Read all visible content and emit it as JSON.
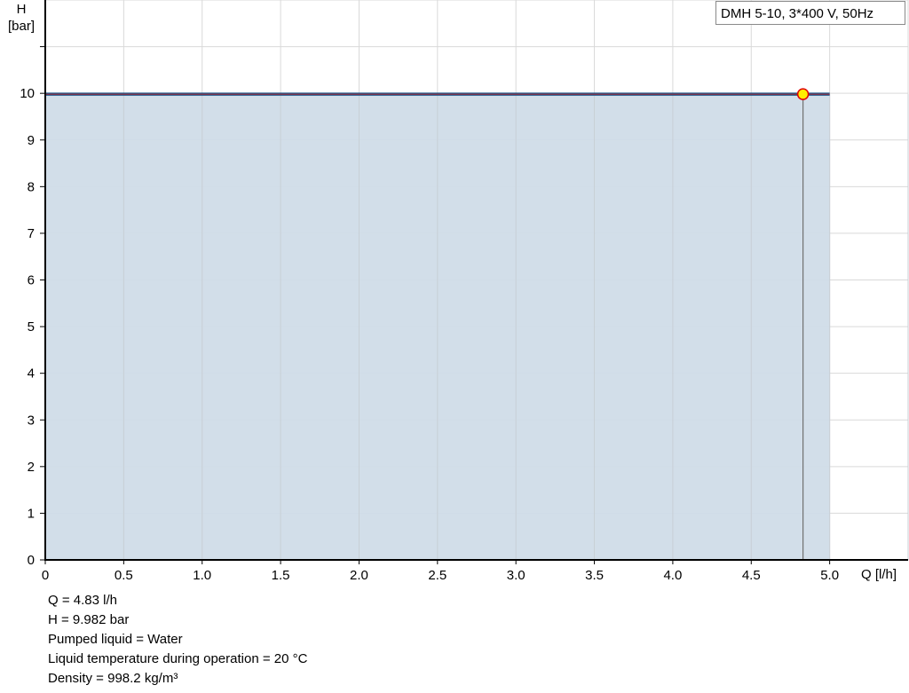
{
  "chart_data": {
    "type": "area",
    "legend": "DMH 5-10, 3*400 V, 50Hz",
    "legend_position": "top-right",
    "xlabel": "Q [l/h]",
    "ylabel_line1": "H",
    "ylabel_line2": "[bar]",
    "xlim": [
      0,
      5.5
    ],
    "ylim": [
      0,
      12
    ],
    "grid": true,
    "x_ticks": [
      "0",
      "0.5",
      "1.0",
      "1.5",
      "2.0",
      "2.5",
      "3.0",
      "3.5",
      "4.0",
      "4.5",
      "5.0"
    ],
    "y_ticks": [
      "0",
      "1",
      "2",
      "3",
      "4",
      "5",
      "6",
      "7",
      "8",
      "9",
      "10"
    ],
    "series": [
      {
        "x": [
          0,
          5.0
        ],
        "y": [
          9.982,
          9.982
        ]
      }
    ],
    "operating_point": {
      "x": 4.83,
      "y": 9.982
    },
    "colors": {
      "line": "#1f5a8c",
      "fill": "#d0dce8",
      "marker": "#ffee00",
      "marker_edge": "#e00000"
    }
  },
  "info": [
    "Q = 4.83 l/h",
    "H = 9.982 bar",
    "Pumped liquid = Water",
    "Liquid temperature during operation = 20 °C",
    "Density = 998.2 kg/m³"
  ]
}
